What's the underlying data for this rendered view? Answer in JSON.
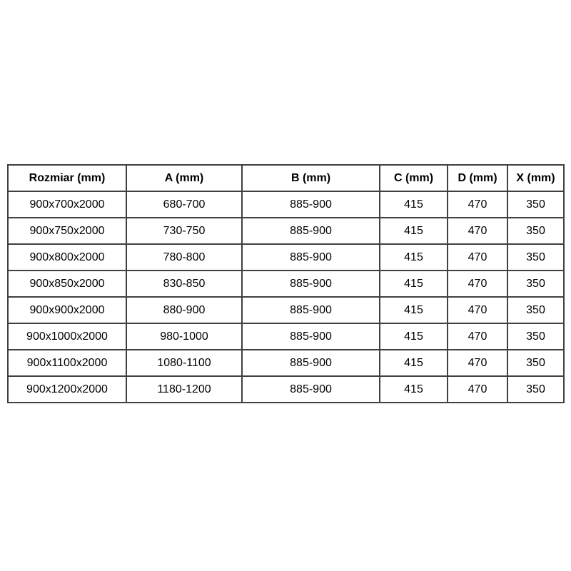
{
  "table": {
    "headers": [
      "Rozmiar (mm)",
      "A (mm)",
      "B (mm)",
      "C (mm)",
      "D (mm)",
      "X (mm)"
    ],
    "rows": [
      [
        "900x700x2000",
        "680-700",
        "885-900",
        "415",
        "470",
        "350"
      ],
      [
        "900x750x2000",
        "730-750",
        "885-900",
        "415",
        "470",
        "350"
      ],
      [
        "900x800x2000",
        "780-800",
        "885-900",
        "415",
        "470",
        "350"
      ],
      [
        "900x850x2000",
        "830-850",
        "885-900",
        "415",
        "470",
        "350"
      ],
      [
        "900x900x2000",
        "880-900",
        "885-900",
        "415",
        "470",
        "350"
      ],
      [
        "900x1000x2000",
        "980-1000",
        "885-900",
        "415",
        "470",
        "350"
      ],
      [
        "900x1100x2000",
        "1080-1100",
        "885-900",
        "415",
        "470",
        "350"
      ],
      [
        "900x1200x2000",
        "1180-1200",
        "885-900",
        "415",
        "470",
        "350"
      ]
    ],
    "border_color": "#404040",
    "background_color": "#ffffff",
    "text_color": "#000000"
  }
}
